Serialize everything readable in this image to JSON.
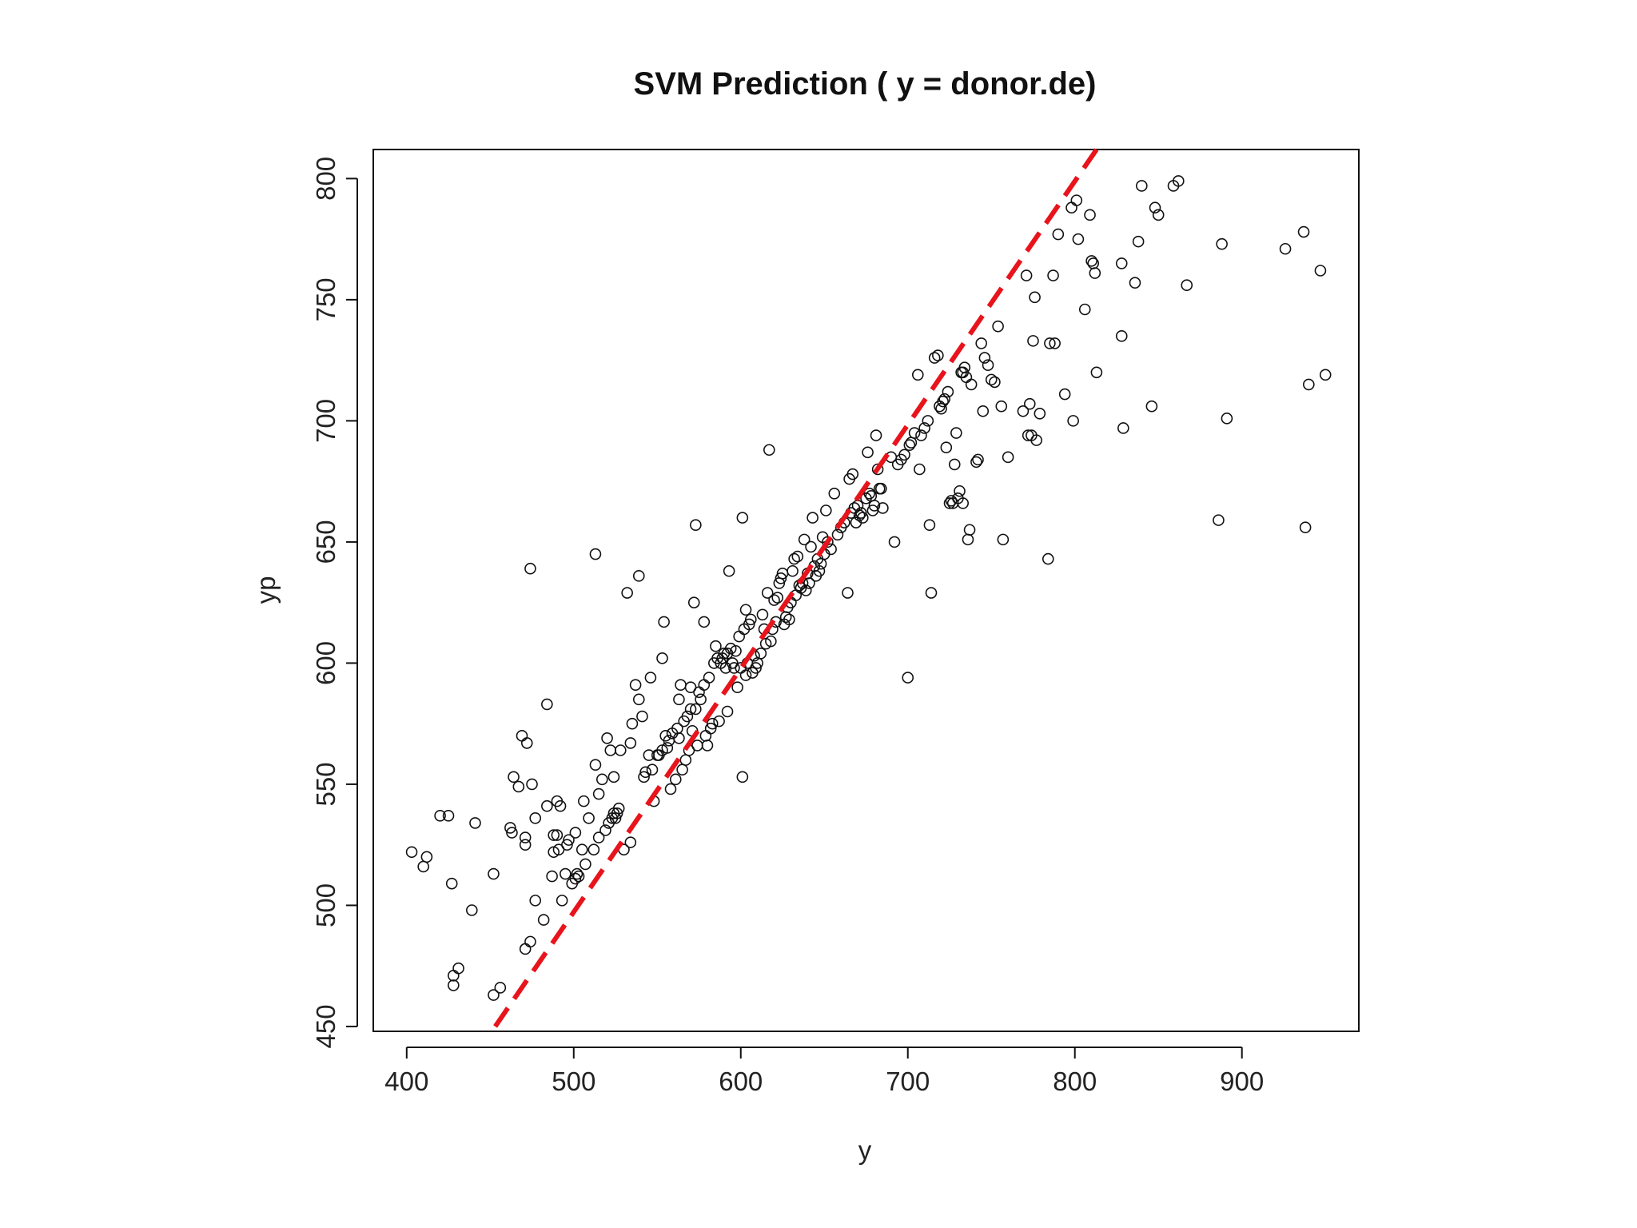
{
  "chart_data": {
    "type": "scatter",
    "title": "SVM Prediction ( y = donor.de)",
    "xlabel": "y",
    "ylabel": "yp",
    "xlim": [
      380,
      970
    ],
    "ylim": [
      448,
      812
    ],
    "x_ticks": [
      400,
      500,
      600,
      700,
      800,
      900
    ],
    "y_ticks": [
      450,
      500,
      550,
      600,
      650,
      700,
      750,
      800
    ],
    "grid": false,
    "reference_line": {
      "style": "dashed",
      "color": "#e8141c",
      "from": [
        453,
        450
      ],
      "to": [
        813,
        812
      ]
    },
    "marker_color": "#111111",
    "series": [
      {
        "points": [
          [
            403,
            522
          ],
          [
            410,
            516
          ],
          [
            412,
            520
          ],
          [
            420,
            537
          ],
          [
            425,
            537
          ],
          [
            427,
            509
          ],
          [
            428,
            467
          ],
          [
            428,
            471
          ],
          [
            431,
            474
          ],
          [
            439,
            498
          ],
          [
            441,
            534
          ],
          [
            452,
            513
          ],
          [
            452,
            463
          ],
          [
            456,
            466
          ],
          [
            462,
            532
          ],
          [
            463,
            530
          ],
          [
            464,
            553
          ],
          [
            467,
            549
          ],
          [
            469,
            570
          ],
          [
            472,
            567
          ],
          [
            471,
            528
          ],
          [
            471,
            525
          ],
          [
            471,
            482
          ],
          [
            474,
            485
          ],
          [
            474,
            639
          ],
          [
            475,
            550
          ],
          [
            477,
            502
          ],
          [
            477,
            536
          ],
          [
            482,
            494
          ],
          [
            484,
            583
          ],
          [
            484,
            541
          ],
          [
            487,
            512
          ],
          [
            488,
            522
          ],
          [
            488,
            529
          ],
          [
            490,
            529
          ],
          [
            490,
            543
          ],
          [
            491,
            523
          ],
          [
            492,
            541
          ],
          [
            493,
            502
          ],
          [
            495,
            513
          ],
          [
            496,
            525
          ],
          [
            497,
            527
          ],
          [
            499,
            509
          ],
          [
            501,
            511
          ],
          [
            501,
            530
          ],
          [
            502,
            513
          ],
          [
            503,
            512
          ],
          [
            505,
            523
          ],
          [
            506,
            543
          ],
          [
            507,
            517
          ],
          [
            509,
            536
          ],
          [
            512,
            523
          ],
          [
            513,
            645
          ],
          [
            513,
            558
          ],
          [
            515,
            528
          ],
          [
            515,
            546
          ],
          [
            517,
            552
          ],
          [
            519,
            531
          ],
          [
            520,
            569
          ],
          [
            521,
            534
          ],
          [
            522,
            564
          ],
          [
            523,
            536
          ],
          [
            524,
            538
          ],
          [
            524,
            553
          ],
          [
            525,
            536
          ],
          [
            526,
            538
          ],
          [
            527,
            540
          ],
          [
            528,
            564
          ],
          [
            530,
            523
          ],
          [
            532,
            629
          ],
          [
            534,
            526
          ],
          [
            534,
            567
          ],
          [
            535,
            575
          ],
          [
            537,
            591
          ],
          [
            539,
            585
          ],
          [
            539,
            636
          ],
          [
            541,
            578
          ],
          [
            542,
            553
          ],
          [
            543,
            555
          ],
          [
            545,
            562
          ],
          [
            546,
            594
          ],
          [
            547,
            556
          ],
          [
            548,
            543
          ],
          [
            550,
            562
          ],
          [
            551,
            562
          ],
          [
            553,
            602
          ],
          [
            553,
            564
          ],
          [
            554,
            617
          ],
          [
            555,
            570
          ],
          [
            556,
            565
          ],
          [
            557,
            568
          ],
          [
            558,
            548
          ],
          [
            559,
            571
          ],
          [
            561,
            552
          ],
          [
            562,
            573
          ],
          [
            563,
            569
          ],
          [
            563,
            585
          ],
          [
            564,
            591
          ],
          [
            565,
            556
          ],
          [
            566,
            576
          ],
          [
            567,
            560
          ],
          [
            568,
            578
          ],
          [
            569,
            564
          ],
          [
            570,
            581
          ],
          [
            570,
            590
          ],
          [
            571,
            572
          ],
          [
            572,
            625
          ],
          [
            573,
            581
          ],
          [
            573,
            657
          ],
          [
            574,
            566
          ],
          [
            575,
            588
          ],
          [
            576,
            585
          ],
          [
            578,
            591
          ],
          [
            578,
            617
          ],
          [
            579,
            570
          ],
          [
            580,
            566
          ],
          [
            581,
            594
          ],
          [
            582,
            573
          ],
          [
            583,
            575
          ],
          [
            584,
            600
          ],
          [
            585,
            607
          ],
          [
            586,
            602
          ],
          [
            587,
            576
          ],
          [
            588,
            600
          ],
          [
            589,
            602
          ],
          [
            590,
            604
          ],
          [
            591,
            598
          ],
          [
            592,
            604
          ],
          [
            592,
            580
          ],
          [
            593,
            638
          ],
          [
            594,
            606
          ],
          [
            595,
            600
          ],
          [
            596,
            598
          ],
          [
            597,
            605
          ],
          [
            598,
            590
          ],
          [
            599,
            611
          ],
          [
            600,
            598
          ],
          [
            601,
            660
          ],
          [
            601,
            553
          ],
          [
            602,
            614
          ],
          [
            603,
            622
          ],
          [
            603,
            595
          ],
          [
            604,
            600
          ],
          [
            605,
            616
          ],
          [
            606,
            618
          ],
          [
            607,
            596
          ],
          [
            608,
            603
          ],
          [
            609,
            598
          ],
          [
            610,
            600
          ],
          [
            612,
            604
          ],
          [
            613,
            620
          ],
          [
            614,
            614
          ],
          [
            615,
            608
          ],
          [
            616,
            629
          ],
          [
            617,
            688
          ],
          [
            618,
            609
          ],
          [
            619,
            614
          ],
          [
            620,
            626
          ],
          [
            621,
            617
          ],
          [
            622,
            627
          ],
          [
            623,
            633
          ],
          [
            624,
            635
          ],
          [
            625,
            637
          ],
          [
            626,
            616
          ],
          [
            627,
            619
          ],
          [
            628,
            623
          ],
          [
            629,
            618
          ],
          [
            630,
            625
          ],
          [
            631,
            638
          ],
          [
            632,
            643
          ],
          [
            633,
            628
          ],
          [
            634,
            644
          ],
          [
            635,
            632
          ],
          [
            636,
            631
          ],
          [
            637,
            633
          ],
          [
            638,
            651
          ],
          [
            639,
            630
          ],
          [
            640,
            637
          ],
          [
            641,
            633
          ],
          [
            642,
            648
          ],
          [
            643,
            660
          ],
          [
            644,
            640
          ],
          [
            645,
            636
          ],
          [
            646,
            643
          ],
          [
            647,
            638
          ],
          [
            648,
            641
          ],
          [
            649,
            652
          ],
          [
            650,
            645
          ],
          [
            651,
            663
          ],
          [
            652,
            650
          ],
          [
            654,
            647
          ],
          [
            656,
            670
          ],
          [
            658,
            653
          ],
          [
            660,
            656
          ],
          [
            662,
            658
          ],
          [
            664,
            629
          ],
          [
            665,
            676
          ],
          [
            666,
            662
          ],
          [
            667,
            678
          ],
          [
            668,
            664
          ],
          [
            669,
            658
          ],
          [
            670,
            665
          ],
          [
            671,
            661
          ],
          [
            672,
            662
          ],
          [
            673,
            660
          ],
          [
            675,
            668
          ],
          [
            676,
            687
          ],
          [
            677,
            670
          ],
          [
            678,
            669
          ],
          [
            679,
            663
          ],
          [
            680,
            665
          ],
          [
            681,
            694
          ],
          [
            682,
            680
          ],
          [
            683,
            672
          ],
          [
            684,
            672
          ],
          [
            685,
            664
          ],
          [
            690,
            685
          ],
          [
            692,
            650
          ],
          [
            694,
            682
          ],
          [
            696,
            684
          ],
          [
            698,
            686
          ],
          [
            700,
            594
          ],
          [
            701,
            690
          ],
          [
            702,
            691
          ],
          [
            704,
            695
          ],
          [
            706,
            719
          ],
          [
            707,
            680
          ],
          [
            708,
            694
          ],
          [
            710,
            697
          ],
          [
            712,
            700
          ],
          [
            713,
            657
          ],
          [
            714,
            629
          ],
          [
            716,
            726
          ],
          [
            718,
            727
          ],
          [
            719,
            706
          ],
          [
            720,
            705
          ],
          [
            721,
            708
          ],
          [
            722,
            709
          ],
          [
            723,
            689
          ],
          [
            724,
            712
          ],
          [
            725,
            666
          ],
          [
            726,
            667
          ],
          [
            727,
            666
          ],
          [
            728,
            682
          ],
          [
            729,
            695
          ],
          [
            730,
            668
          ],
          [
            731,
            671
          ],
          [
            732,
            720
          ],
          [
            733,
            720
          ],
          [
            733,
            666
          ],
          [
            734,
            722
          ],
          [
            735,
            718
          ],
          [
            736,
            651
          ],
          [
            737,
            655
          ],
          [
            738,
            715
          ],
          [
            741,
            683
          ],
          [
            742,
            684
          ],
          [
            744,
            732
          ],
          [
            745,
            704
          ],
          [
            746,
            726
          ],
          [
            748,
            723
          ],
          [
            750,
            717
          ],
          [
            752,
            716
          ],
          [
            754,
            739
          ],
          [
            756,
            706
          ],
          [
            757,
            651
          ],
          [
            760,
            685
          ],
          [
            769,
            704
          ],
          [
            771,
            760
          ],
          [
            772,
            694
          ],
          [
            773,
            707
          ],
          [
            774,
            694
          ],
          [
            775,
            733
          ],
          [
            776,
            751
          ],
          [
            777,
            692
          ],
          [
            779,
            703
          ],
          [
            784,
            643
          ],
          [
            785,
            732
          ],
          [
            787,
            760
          ],
          [
            788,
            732
          ],
          [
            790,
            777
          ],
          [
            794,
            711
          ],
          [
            798,
            788
          ],
          [
            799,
            700
          ],
          [
            801,
            791
          ],
          [
            802,
            775
          ],
          [
            806,
            746
          ],
          [
            809,
            785
          ],
          [
            810,
            766
          ],
          [
            811,
            765
          ],
          [
            812,
            761
          ],
          [
            813,
            720
          ],
          [
            828,
            765
          ],
          [
            828,
            735
          ],
          [
            829,
            697
          ],
          [
            836,
            757
          ],
          [
            838,
            774
          ],
          [
            840,
            797
          ],
          [
            846,
            706
          ],
          [
            848,
            788
          ],
          [
            850,
            785
          ],
          [
            859,
            797
          ],
          [
            862,
            799
          ],
          [
            867,
            756
          ],
          [
            886,
            659
          ],
          [
            888,
            773
          ],
          [
            891,
            701
          ],
          [
            926,
            771
          ],
          [
            937,
            778
          ],
          [
            938,
            656
          ],
          [
            940,
            715
          ],
          [
            947,
            762
          ],
          [
            950,
            719
          ]
        ]
      }
    ]
  }
}
